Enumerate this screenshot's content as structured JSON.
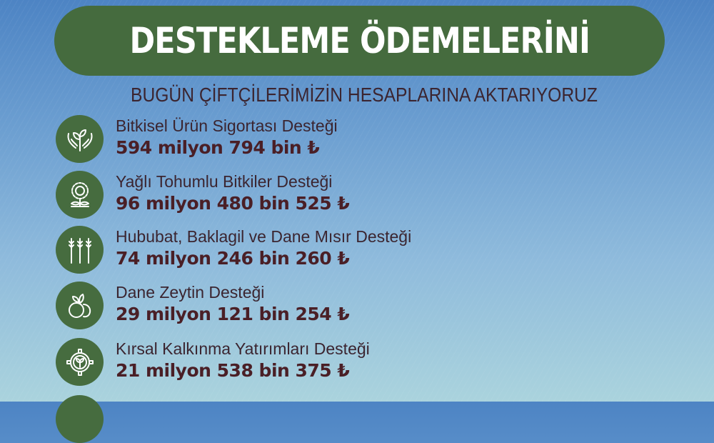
{
  "title": "DESTEKLEME ÖDEMELERİNİ",
  "subtitle": "BUGÜN ÇİFTÇİLERİMİZİN HESAPLARINA AKTARIYORUZ",
  "colors": {
    "banner": "#456b3e",
    "icon_circle": "#466c3f",
    "text": "#3b2530",
    "amount": "#4a1f26"
  },
  "items": [
    {
      "icon": "hands-plant-icon",
      "label": "Bitkisel Ürün Sigortası Desteği",
      "amount": "594 milyon 794 bin ₺"
    },
    {
      "icon": "sunflower-icon",
      "label": "Yağlı Tohumlu Bitkiler Desteği",
      "amount": "96 milyon 480 bin 525 ₺"
    },
    {
      "icon": "wheat-icon",
      "label": "Hububat, Baklagil ve Dane Mısır Desteği",
      "amount": "74 milyon 246 bin 260 ₺"
    },
    {
      "icon": "olive-icon",
      "label": "Dane Zeytin Desteği",
      "amount": "29 milyon 121 bin 254 ₺"
    },
    {
      "icon": "gear-sprout-icon",
      "label": "Kırsal Kalkınma Yatırımları Desteği",
      "amount": "21 milyon 538 bin 375 ₺"
    }
  ]
}
